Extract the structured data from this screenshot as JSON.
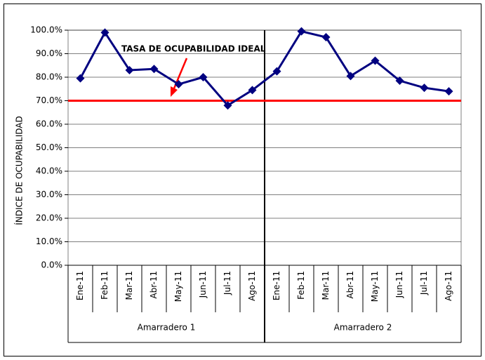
{
  "chart_data": {
    "type": "line",
    "y_axis_label": "ÍNDICE DE OCUPABILIDAD",
    "annotation": "TASA DE OCUPABILIDAD IDEAL",
    "groups": [
      "Amarradero 1",
      "Amarradero 2"
    ],
    "categories": [
      "Ene-11",
      "Feb-11",
      "Mar-11",
      "Abr-11",
      "May-11",
      "Jun-11",
      "Jul-11",
      "Ago-11",
      "Ene-11",
      "Feb-11",
      "Mar-11",
      "Abr-11",
      "May-11",
      "Jun-11",
      "Jul-11",
      "Ago-11"
    ],
    "series": [
      {
        "color": "#000080",
        "values": [
          79.5,
          99,
          83,
          83.5,
          77,
          80,
          68,
          74.5,
          82.5,
          99.5,
          97,
          80.5,
          87,
          78.5,
          75.5,
          74
        ]
      }
    ],
    "reference_line": {
      "value": 70,
      "color": "#ff0000"
    },
    "ylim": [
      0,
      100
    ],
    "yticks": [
      {
        "value": 0,
        "label": "0.0%"
      },
      {
        "value": 10,
        "label": "10.0%"
      },
      {
        "value": 20,
        "label": "20.0%"
      },
      {
        "value": 30,
        "label": "30.0%"
      },
      {
        "value": 40,
        "label": "40.0%"
      },
      {
        "value": 50,
        "label": "50.0%"
      },
      {
        "value": 60,
        "label": "60.0%"
      },
      {
        "value": 70,
        "label": "70.0%"
      },
      {
        "value": 80,
        "label": "80.0%"
      },
      {
        "value": 90,
        "label": "90.0%"
      },
      {
        "value": 100,
        "label": "100.0%"
      }
    ],
    "grid": true
  }
}
